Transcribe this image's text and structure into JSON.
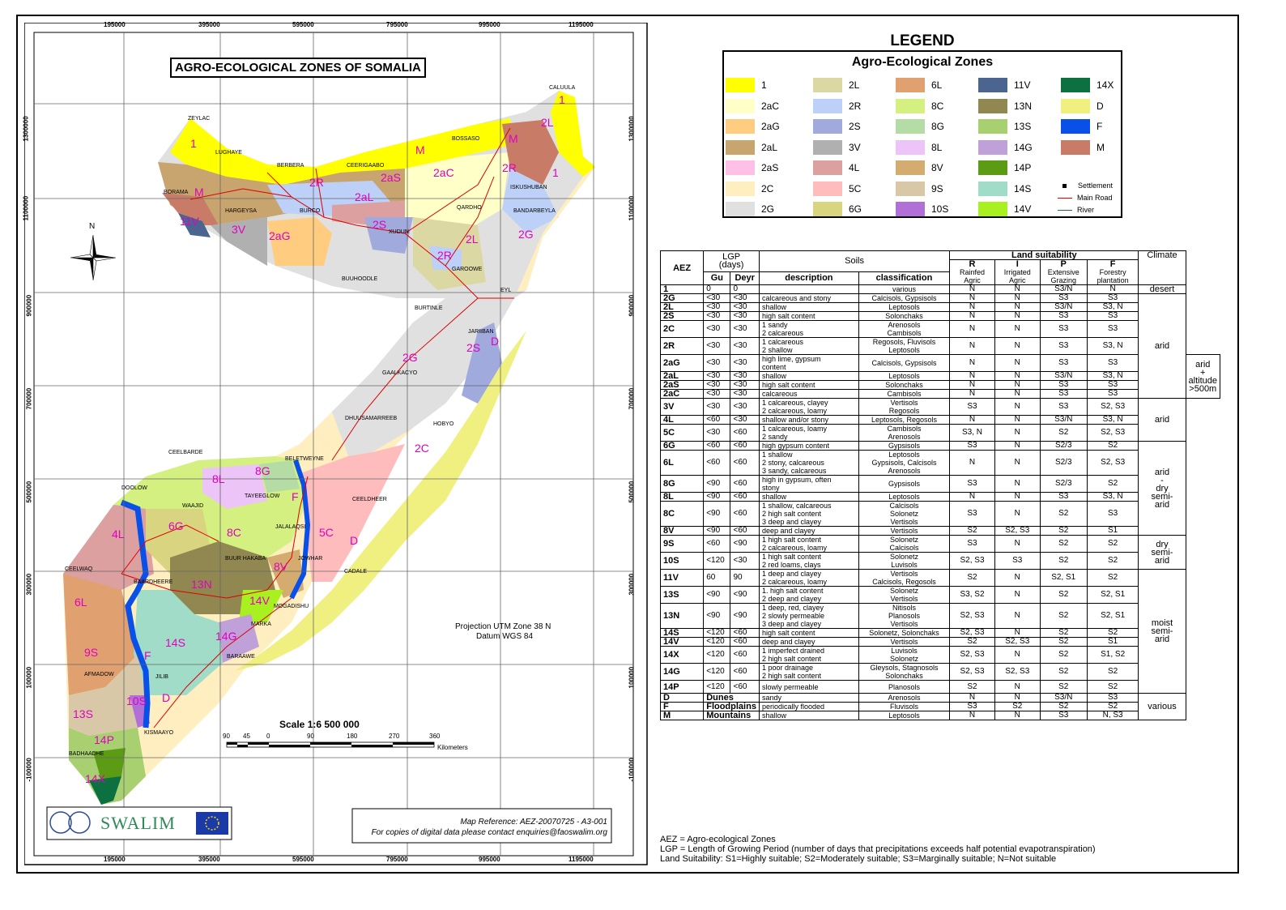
{
  "map": {
    "title": "AGRO-ECOLOGICAL ZONES OF SOMALIA",
    "top_ticks": [
      "195000",
      "395000",
      "595000",
      "795000",
      "995000",
      "1195000"
    ],
    "bottom_ticks": [
      "195000",
      "395000",
      "595000",
      "795000",
      "995000",
      "1195000"
    ],
    "left_ticks": [
      "1300000",
      "1100000",
      "900000",
      "700000",
      "500000",
      "300000",
      "100000",
      "-100000"
    ],
    "right_ticks": [
      "1300000",
      "1100000",
      "900000",
      "700000",
      "500000",
      "300000",
      "100000",
      "-100000"
    ],
    "north": "N",
    "projection": "Projection UTM Zone 38 N",
    "datum": "Datum WGS 84",
    "scale": "Scale 1:6 500 000",
    "scale_ticks": [
      "90",
      "45",
      "0",
      "90",
      "180",
      "270",
      "360"
    ],
    "scale_unit": "Kilometers",
    "reference": "Map Reference: AEZ-20070725 - A3-001",
    "contact": "For copies of digital data please contact enquiries@faoswalim.org",
    "logo_text": "SWALIM",
    "settlements": [
      "CALUULA",
      "ZEYLAC",
      "LUGHAYE",
      "BOSSASO",
      "BERBERA",
      "CEERIGAABO",
      "ISKUSHUBAN",
      "BORAMA",
      "HARGEYSA",
      "BURCO",
      "QARDHO",
      "BANDARBEYLA",
      "XUDUN",
      "GAROOWE",
      "BUUHOODLE",
      "EYL",
      "BURTINLE",
      "JARIIBAN",
      "GAALKACYO",
      "DHUUSAMARREEB",
      "HOBYO",
      "CEELBARDE",
      "BELETWEYNE",
      "DOOLOW",
      "TAYEEGLOW",
      "WAAJID",
      "CEELDHEER",
      "JALALAQSI",
      "BUUR HAKABA",
      "JOWHAR",
      "CEELWAQ",
      "BAARDHEERE",
      "CADALE",
      "MOGADISHU",
      "MARKA",
      "BARAAWE",
      "AFMADOW",
      "JILIB",
      "KISMAAYO",
      "BADHAADHE"
    ],
    "zone_labels": [
      "1",
      "1",
      "1",
      "2L",
      "M",
      "M",
      "2aC",
      "2aS",
      "2R",
      "2R",
      "1",
      "M",
      "2aL",
      "11V",
      "3V",
      "2aG",
      "2S",
      "2L",
      "2G",
      "2R",
      "2G",
      "2S",
      "D",
      "2C",
      "8G",
      "8L",
      "F",
      "6G",
      "4L",
      "8C",
      "5C",
      "D",
      "8V",
      "13N",
      "6L",
      "14V",
      "14G",
      "14S",
      "9S",
      "F",
      "10S",
      "D",
      "13S",
      "14P",
      "14X"
    ]
  },
  "legend": {
    "title": "LEGEND",
    "subtitle": "Agro-Ecological Zones",
    "columns": [
      [
        {
          "code": "1",
          "color": "#ffff00"
        },
        {
          "code": "2aC",
          "color": "#ffffc8"
        },
        {
          "code": "2aG",
          "color": "#ffcc80"
        },
        {
          "code": "2aL",
          "color": "#c8a46e"
        },
        {
          "code": "2aS",
          "color": "#ffc0e8"
        },
        {
          "code": "2C",
          "color": "#ffeec0"
        },
        {
          "code": "2G",
          "color": "#e0e0e0"
        }
      ],
      [
        {
          "code": "2L",
          "color": "#dcd8a4"
        },
        {
          "code": "2R",
          "color": "#bcd0f8"
        },
        {
          "code": "2S",
          "color": "#a0aadc"
        },
        {
          "code": "3V",
          "color": "#b0b0b0"
        },
        {
          "code": "4L",
          "color": "#dca0a0"
        },
        {
          "code": "5C",
          "color": "#ffbcbc"
        },
        {
          "code": "6G",
          "color": "#d8d480"
        }
      ],
      [
        {
          "code": "6L",
          "color": "#e0a070"
        },
        {
          "code": "8C",
          "color": "#d4f080"
        },
        {
          "code": "8G",
          "color": "#b4dca4"
        },
        {
          "code": "8L",
          "color": "#ecc4f8"
        },
        {
          "code": "8V",
          "color": "#d4ac70"
        },
        {
          "code": "9S",
          "color": "#d8c8a8"
        },
        {
          "code": "10S",
          "color": "#b070d8"
        }
      ],
      [
        {
          "code": "11V",
          "color": "#4c6490"
        },
        {
          "code": "13N",
          "color": "#908850"
        },
        {
          "code": "13S",
          "color": "#a8d070"
        },
        {
          "code": "14G",
          "color": "#c0a0d8"
        },
        {
          "code": "14P",
          "color": "#5c9c14"
        },
        {
          "code": "14S",
          "color": "#a0dcc8"
        },
        {
          "code": "14V",
          "color": "#a8f020"
        }
      ],
      [
        {
          "code": "14X",
          "color": "#0c7040"
        },
        {
          "code": "D",
          "color": "#f0f080"
        },
        {
          "code": "F",
          "color": "#0850e8"
        },
        {
          "code": "M",
          "color": "#c87c68"
        }
      ]
    ],
    "symbols": {
      "settlement": "Settlement",
      "road": "Main Road",
      "river": "River"
    }
  },
  "table": {
    "headers": {
      "aez": "AEZ",
      "lgp": "LGP",
      "lgp_unit": "(days)",
      "gu": "Gu",
      "deyr": "Deyr",
      "soils": "Soils",
      "description": "description",
      "classification": "classification",
      "land_suitability": "Land suitability",
      "climate": "Climate",
      "r": "R",
      "r_sub": "Rainfed Agric",
      "i": "I",
      "i_sub": "Irrigated Agric",
      "p": "P",
      "p_sub": "Extensive Grazing",
      "f": "F",
      "f_sub": "Forestry plantation"
    },
    "rows": [
      {
        "aez": "1",
        "gu": "0",
        "deyr": "0",
        "desc": "",
        "cls": "various",
        "r": "N",
        "i": "N",
        "p": "S3/N",
        "f": "N"
      },
      {
        "aez": "2G",
        "gu": "<30",
        "deyr": "<30",
        "desc": "calcareous and stony",
        "cls": "Calcisols, Gypsisols",
        "r": "N",
        "i": "N",
        "p": "S3",
        "f": "S3"
      },
      {
        "aez": "2L",
        "gu": "<30",
        "deyr": "<30",
        "desc": "shallow",
        "cls": "Leptosols",
        "r": "N",
        "i": "N",
        "p": "S3/N",
        "f": "S3, N"
      },
      {
        "aez": "2S",
        "gu": "<30",
        "deyr": "<30",
        "desc": "high salt content",
        "cls": "Solonchaks",
        "r": "N",
        "i": "N",
        "p": "S3",
        "f": "S3"
      },
      {
        "aez": "2C",
        "gu": "<30",
        "deyr": "<30",
        "desc": "1 sandy\n2 calcareous",
        "cls": "Arenosols\nCambisols",
        "r": "N",
        "i": "N",
        "p": "S3",
        "f": "S3"
      },
      {
        "aez": "2R",
        "gu": "<30",
        "deyr": "<30",
        "desc": "1 calcareous\n2 shallow",
        "cls": "Regosols, Fluvisols\nLeptosols",
        "r": "N",
        "i": "N",
        "p": "S3",
        "f": "S3, N"
      },
      {
        "aez": "2aG",
        "gu": "<30",
        "deyr": "<30",
        "desc": "high lime, gypsum\ncontent",
        "cls": "Calcisols, Gypsisols",
        "r": "N",
        "i": "N",
        "p": "S3",
        "f": "S3"
      },
      {
        "aez": "2aL",
        "gu": "<30",
        "deyr": "<30",
        "desc": "shallow",
        "cls": "Leptosols",
        "r": "N",
        "i": "N",
        "p": "S3/N",
        "f": "S3, N"
      },
      {
        "aez": "2aS",
        "gu": "<30",
        "deyr": "<30",
        "desc": "high salt content",
        "cls": "Solonchaks",
        "r": "N",
        "i": "N",
        "p": "S3",
        "f": "S3"
      },
      {
        "aez": "2aC",
        "gu": "<30",
        "deyr": "<30",
        "desc": "calcareous",
        "cls": "Cambisols",
        "r": "N",
        "i": "N",
        "p": "S3",
        "f": "S3"
      },
      {
        "aez": "3V",
        "gu": "<30",
        "deyr": "<30",
        "desc": "1 calcareous, clayey\n2 calcareous, loamy",
        "cls": "Vertisols\nRegosols",
        "r": "S3",
        "i": "N",
        "p": "S3",
        "f": "S2, S3"
      },
      {
        "aez": "4L",
        "gu": "<60",
        "deyr": "<30",
        "desc": "shallow and/or stony",
        "cls": "Leptosols, Regosols",
        "r": "N",
        "i": "N",
        "p": "S3/N",
        "f": "S3, N"
      },
      {
        "aez": "5C",
        "gu": "<30",
        "deyr": "<60",
        "desc": "1 calcareous, loamy\n2 sandy",
        "cls": "Cambisols\nArenosols",
        "r": "S3, N",
        "i": "N",
        "p": "S2",
        "f": "S2, S3"
      },
      {
        "aez": "6G",
        "gu": "<60",
        "deyr": "<60",
        "desc": "high gypsum content",
        "cls": "Gypsisols",
        "r": "S3",
        "i": "N",
        "p": "S2/3",
        "f": "S2"
      },
      {
        "aez": "6L",
        "gu": "<60",
        "deyr": "<60",
        "desc": "1 shallow\n2 stony, calcareous\n3 sandy, calcareous",
        "cls": "Leptosols\nGypsisols, Calcisols\nArenosols",
        "r": "N",
        "i": "N",
        "p": "S2/3",
        "f": "S2, S3"
      },
      {
        "aez": "8G",
        "gu": "<90",
        "deyr": "<60",
        "desc": "high in gypsum, often\nstony",
        "cls": "Gypsisols",
        "r": "S3",
        "i": "N",
        "p": "S2/3",
        "f": "S2"
      },
      {
        "aez": "8L",
        "gu": "<90",
        "deyr": "<60",
        "desc": "shallow",
        "cls": "Leptosols",
        "r": "N",
        "i": "N",
        "p": "S3",
        "f": "S3, N"
      },
      {
        "aez": "8C",
        "gu": "<90",
        "deyr": "<60",
        "desc": "1 shallow, calcareous\n2 high salt content\n3 deep and clayey",
        "cls": "Calcisols\nSolonetz\nVertisols",
        "r": "S3",
        "i": "N",
        "p": "S2",
        "f": "S3"
      },
      {
        "aez": "8V",
        "gu": "<90",
        "deyr": "<60",
        "desc": "deep and clayey",
        "cls": "Vertisols",
        "r": "S2",
        "i": "S2, S3",
        "p": "S2",
        "f": "S1"
      },
      {
        "aez": "9S",
        "gu": "<60",
        "deyr": "<90",
        "desc": "1 high salt content\n2 calcareous, loamy",
        "cls": "Solonetz\nCalcisols",
        "r": "S3",
        "i": "N",
        "p": "S2",
        "f": "S2"
      },
      {
        "aez": "10S",
        "gu": "<120",
        "deyr": "<30",
        "desc": "1 high salt content\n2 red loams, clays",
        "cls": "Solonetz\nLuvisols",
        "r": "S2, S3",
        "i": "S3",
        "p": "S2",
        "f": "S2"
      },
      {
        "aez": "11V",
        "gu": "60",
        "deyr": "90",
        "desc": "1 deep and clayey\n2 calcareous, loamy",
        "cls": "Vertisols\nCalcisols, Regosols",
        "r": "S2",
        "i": "N",
        "p": "S2, S1",
        "f": "S2"
      },
      {
        "aez": "13S",
        "gu": "<90",
        "deyr": "<90",
        "desc": "1. high salt content\n2 deep and clayey",
        "cls": "Solonetz\nVertisols",
        "r": "S3, S2",
        "i": "N",
        "p": "S2",
        "f": "S2, S1"
      },
      {
        "aez": "13N",
        "gu": "<90",
        "deyr": "<90",
        "desc": "1 deep, red, clayey\n2 slowly permeable\n3 deep and clayey",
        "cls": "Nitisols\nPlanosols\nVertisols",
        "r": "S2, S3",
        "i": "N",
        "p": "S2",
        "f": "S2, S1"
      },
      {
        "aez": "14S",
        "gu": "<120",
        "deyr": "<60",
        "desc": "high salt content",
        "cls": "Solonetz, Solonchaks",
        "r": "S2, S3",
        "i": "N",
        "p": "S2",
        "f": "S2"
      },
      {
        "aez": "14V",
        "gu": "<120",
        "deyr": "<60",
        "desc": "deep and clayey",
        "cls": "Vertisols",
        "r": "S2",
        "i": "S2, S3",
        "p": "S2",
        "f": "S1"
      },
      {
        "aez": "14X",
        "gu": "<120",
        "deyr": "<60",
        "desc": "1 imperfect drained\n2 high salt content",
        "cls": "Luvisols\nSolonetz",
        "r": "S2, S3",
        "i": "N",
        "p": "S2",
        "f": "S1, S2"
      },
      {
        "aez": "14G",
        "gu": "<120",
        "deyr": "<60",
        "desc": "1 poor drainage\n2 high salt content",
        "cls": "Gleysols, Stagnosols\nSolonchaks",
        "r": "S2, S3",
        "i": "S2, S3",
        "p": "S2",
        "f": "S2"
      },
      {
        "aez": "14P",
        "gu": "<120",
        "deyr": "<60",
        "desc": "slowly permeable",
        "cls": "Planosols",
        "r": "S2",
        "i": "N",
        "p": "S2",
        "f": "S2"
      },
      {
        "aez": "D",
        "lgp": "Dunes",
        "desc": "sandy",
        "cls": "Arenosols",
        "r": "N",
        "i": "N",
        "p": "S3/N",
        "f": "S3"
      },
      {
        "aez": "F",
        "lgp": "Floodplains",
        "desc": "periodically flooded",
        "cls": "Fluvisols",
        "r": "S3",
        "i": "S2",
        "p": "S2",
        "f": "S2"
      },
      {
        "aez": "M",
        "lgp": "Mountains",
        "desc": "shallow",
        "cls": "Leptosols",
        "r": "N",
        "i": "N",
        "p": "S3",
        "f": "N, S3"
      }
    ],
    "climate": [
      "desert",
      "arid",
      "arid\n+\naltitude\n>500m",
      "arid",
      "arid\n-\ndry\nsemi-\narid",
      "dry\nsemi-\narid",
      "moist\nsemi-\narid",
      "various"
    ]
  },
  "footnotes": [
    "AEZ = Agro-ecological Zones",
    "LGP = Length of Growing Period (number of days that precipitations exceeds half potential evapotranspiration)",
    "Land Suitability: S1=Highly suitable; S2=Moderately suitable; S3=Marginally suitable; N=Not suitable"
  ]
}
